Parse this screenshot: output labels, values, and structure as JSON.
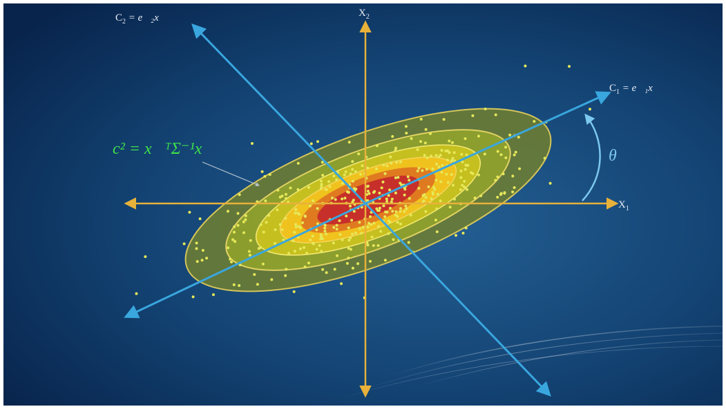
{
  "labels": {
    "x1_axis": "X",
    "x1_sub": "1",
    "x2_axis": "X",
    "x2_sub": "2",
    "c1_lhs": "C",
    "c1_sub": "1",
    "c1_rhs": " = e⃗₁x⃗",
    "c2_lhs": "C",
    "c2_sub": "2",
    "c2_rhs": " = e⃗₂x⃗",
    "mahalanobis_formula": "c² = x⃗ᵀΣ⁻¹x⃗",
    "angle": "θ"
  },
  "colors": {
    "background_dark": "#0a2a55",
    "background_light": "#1f5a8e",
    "axis_yellow": "#e8b13a",
    "pc_arrow_blue": "#3aa6de",
    "formula_green": "#3fe04a",
    "theta_blue": "#7cc8ee",
    "point_yellow": "#e6e85a",
    "contour_outer": "#6d7d32",
    "contour_2": "#8fa22c",
    "contour_3": "#c8c21f",
    "contour_4": "#f0c21e",
    "contour_5": "#e07a20",
    "contour_inner": "#c7302a"
  }
}
